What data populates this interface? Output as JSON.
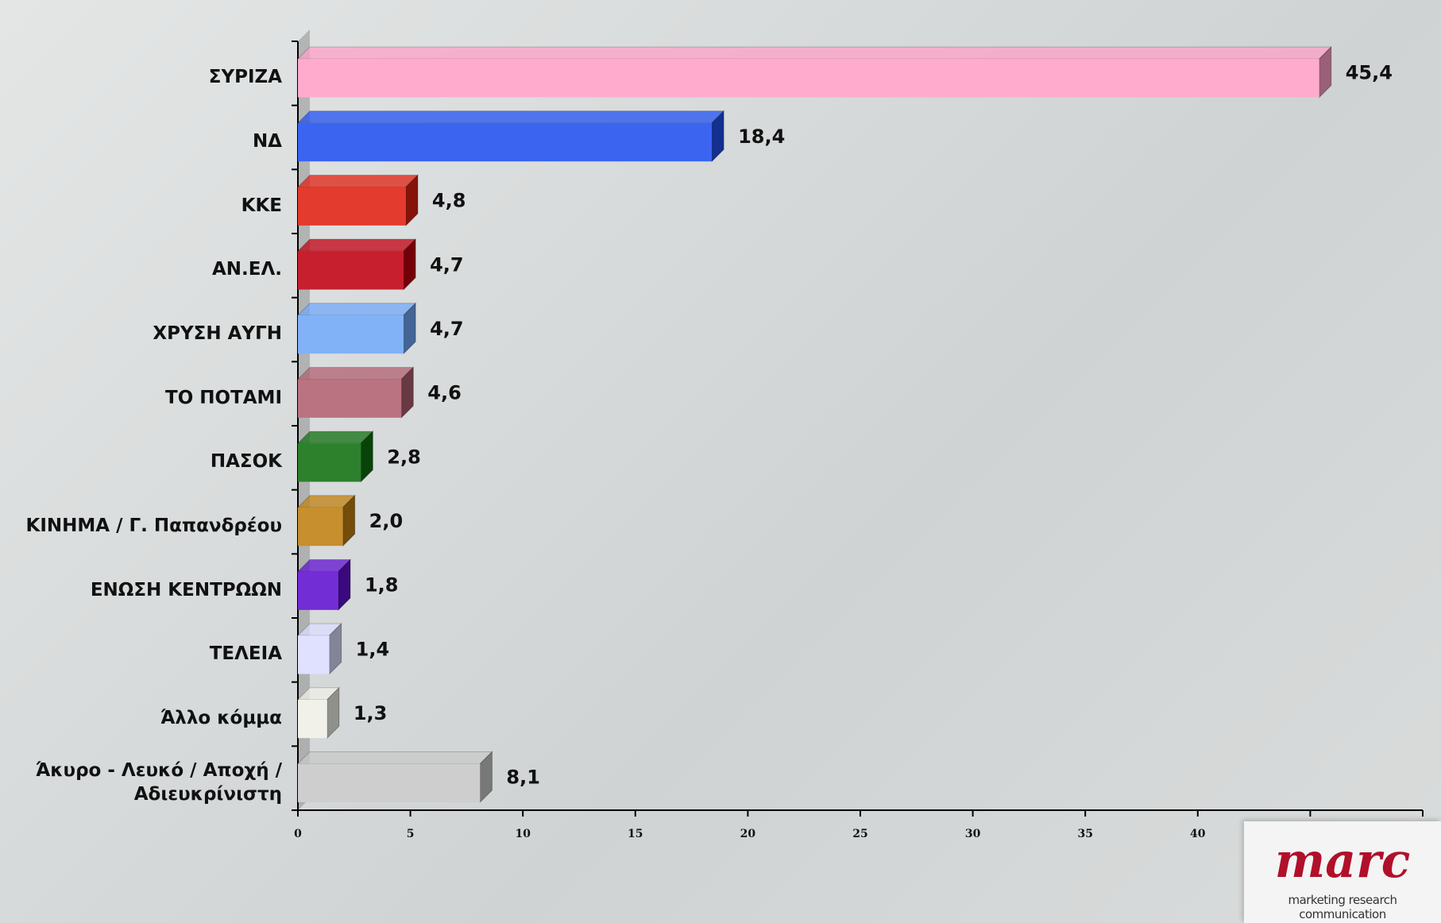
{
  "chart_data": {
    "type": "bar",
    "orientation": "horizontal",
    "categories": [
      "ΣΥΡΙΖΑ",
      "ΝΔ",
      "ΚΚΕ",
      "ΑΝ.ΕΛ.",
      "ΧΡΥΣΗ ΑΥΓΗ",
      "ΤΟ ΠΟΤΑΜΙ",
      "ΠΑΣΟΚ",
      "ΚΙΝΗΜΑ / Γ. Παπανδρέου",
      "ΕΝΩΣΗ ΚΕΝΤΡΩΩΝ",
      "ΤΕΛΕΙΑ",
      "Άλλο κόμμα",
      "Άκυρο - Λευκό / Αποχή / Αδιευκρίνιστη"
    ],
    "values": [
      45.4,
      18.4,
      4.8,
      4.7,
      4.7,
      4.6,
      2.8,
      2.0,
      1.8,
      1.4,
      1.3,
      8.1
    ],
    "value_labels": [
      "45,4",
      "18,4",
      "4,8",
      "4,7",
      "4,7",
      "4,6",
      "2,8",
      "2,0",
      "1,8",
      "1,4",
      "1,3",
      "8,1"
    ],
    "colors": [
      "#ffa0c8",
      "#2050f0",
      "#e02010",
      "#c00010",
      "#70a8f8",
      "#b06070",
      "#107010",
      "#c08010",
      "#6010d0",
      "#dcdcff",
      "#f0f0e8",
      "#c8c8c8"
    ],
    "xlim": [
      0,
      50
    ],
    "xticks": [
      0,
      5,
      10,
      15,
      20,
      25,
      30,
      35,
      40,
      45,
      50
    ]
  },
  "logo": {
    "name": "marc",
    "tagline": "marketing research communication"
  }
}
